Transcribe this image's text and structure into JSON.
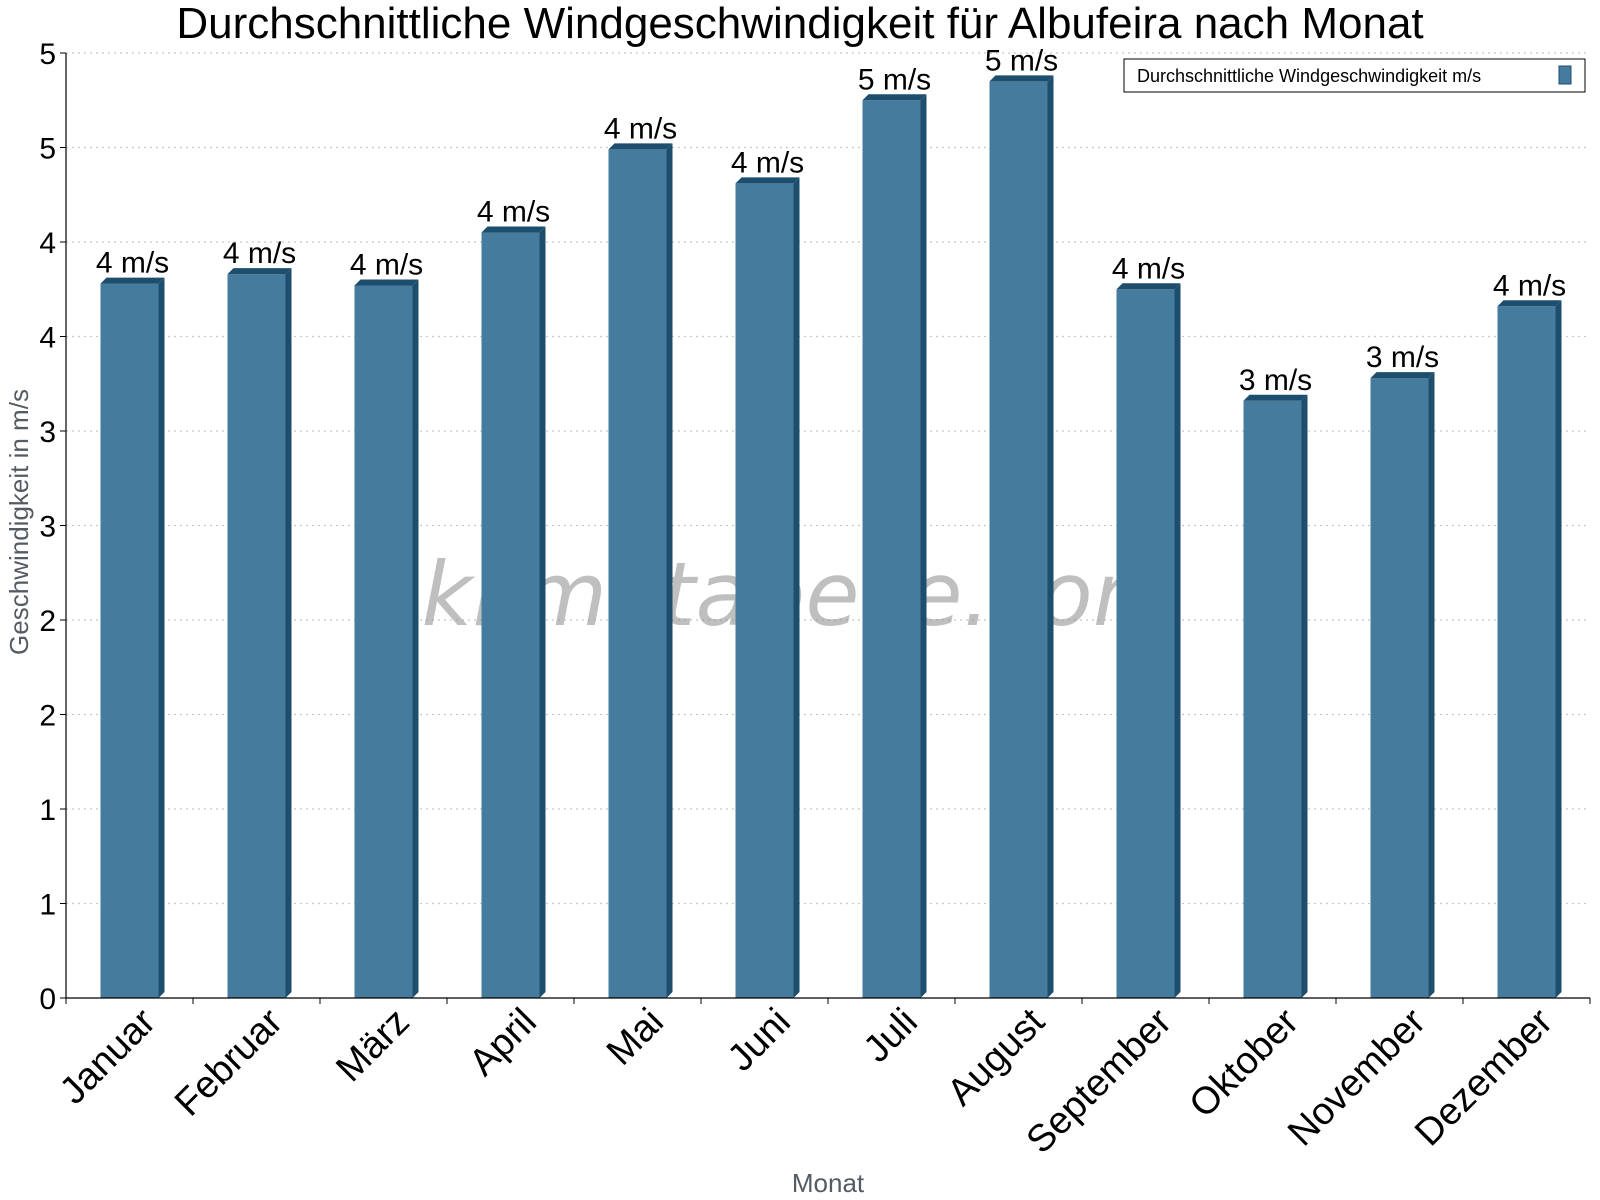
{
  "chart_data": {
    "type": "bar",
    "title": "Durchschnittliche Windgeschwindigkeit für Albufeira nach Monat",
    "xlabel": "Monat",
    "ylabel": "Geschwindigkeit in m/s",
    "categories": [
      "Januar",
      "Februar",
      "März",
      "April",
      "Mai",
      "Juni",
      "Juli",
      "August",
      "September",
      "Oktober",
      "November",
      "Dezember"
    ],
    "series": [
      {
        "name": "Durchschnittliche Windgeschwindigkeit m/s",
        "values": [
          3.78,
          3.83,
          3.77,
          4.05,
          4.49,
          4.31,
          4.75,
          4.85,
          3.75,
          3.16,
          3.28,
          3.66
        ],
        "labels": [
          "4 m/s",
          "4 m/s",
          "4 m/s",
          "4 m/s",
          "4 m/s",
          "4 m/s",
          "5 m/s",
          "5 m/s",
          "4 m/s",
          "3 m/s",
          "3 m/s",
          "4 m/s"
        ],
        "color": "#457b9d",
        "shade_color": "#1d4e6e"
      }
    ],
    "ylim": [
      0,
      5
    ],
    "yticks": [
      0,
      0.5,
      1,
      1.5,
      2,
      2.5,
      3,
      3.5,
      4,
      4.5,
      5
    ],
    "ytick_labels": [
      "0",
      "1",
      "1",
      "2",
      "2",
      "3",
      "3",
      "4",
      "4",
      "5",
      "5"
    ],
    "grid": "horizontal-dotted",
    "legend_position": "top-right",
    "watermark": "klimatabelle.com"
  }
}
